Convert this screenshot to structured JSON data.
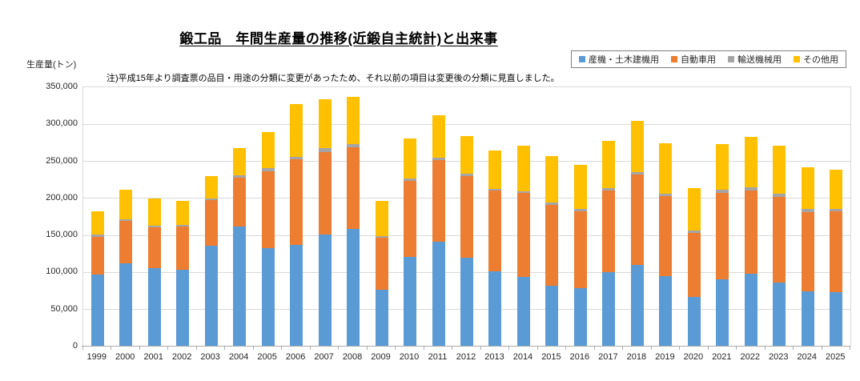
{
  "title": "鍛工品　年間生産量の推移(近鍛自主統計)と出来事",
  "note": "注)平成15年より調査票の品目・用途の分類に変更があったため、それ以前の項目は変更後の分類に見直しました。",
  "y_axis_title": "生産量(トン)",
  "colors": {
    "series_blue": "#5B9BD5",
    "series_orange": "#ED7D31",
    "series_gray": "#A5A5A5",
    "series_yellow": "#FFC000",
    "gridline": "#D9D9D9",
    "axis_line": "#ABABAB",
    "text": "#262626"
  },
  "chart_data": {
    "type": "bar",
    "stacked": true,
    "title": "鍛工品　年間生産量の推移(近鍛自主統計)と出来事",
    "xlabel": "",
    "ylabel": "生産量(トン)",
    "ylim": [
      0,
      350000
    ],
    "ytick_values": [
      0,
      50000,
      100000,
      150000,
      200000,
      250000,
      300000,
      350000
    ],
    "ytick_labels": [
      "0",
      "50,000",
      "100,000",
      "150,000",
      "200,000",
      "250,000",
      "300,000",
      "350,000"
    ],
    "grid": true,
    "legend_position": "top-right",
    "categories": [
      "1999",
      "2000",
      "2001",
      "2002",
      "2003",
      "2004",
      "2005",
      "2006",
      "2007",
      "2008",
      "2009",
      "2010",
      "2011",
      "2012",
      "2013",
      "2014",
      "2015",
      "2016",
      "2017",
      "2018",
      "2019",
      "2020",
      "2021",
      "2022",
      "2023",
      "2024",
      "2025"
    ],
    "series": [
      {
        "name": "産機・土木建機用",
        "color": "#5B9BD5",
        "values": [
          97000,
          112000,
          106000,
          104000,
          136000,
          162000,
          133000,
          137000,
          151000,
          159000,
          77000,
          121000,
          142000,
          120000,
          102000,
          94000,
          82000,
          79000,
          100000,
          110000,
          95000,
          67000,
          91000,
          98000,
          86000,
          74000,
          73000
        ]
      },
      {
        "name": "自動車用",
        "color": "#ED7D31",
        "values": [
          51000,
          58000,
          55000,
          58000,
          62000,
          66000,
          104000,
          116000,
          112000,
          110000,
          70000,
          103000,
          110000,
          110000,
          109000,
          113000,
          109000,
          104000,
          111000,
          122000,
          108000,
          86000,
          116000,
          113000,
          116000,
          108000,
          110000
        ]
      },
      {
        "name": "輸送機械用",
        "color": "#A5A5A5",
        "values": [
          3000,
          2000,
          2000,
          2000,
          2000,
          3000,
          4000,
          3000,
          5000,
          4000,
          2000,
          3000,
          3000,
          3000,
          2000,
          3000,
          3000,
          3000,
          3000,
          4000,
          3000,
          4000,
          5000,
          4000,
          4000,
          4000,
          3000
        ]
      },
      {
        "name": "その他用",
        "color": "#FFC000",
        "values": [
          32000,
          40000,
          37000,
          33000,
          30000,
          37000,
          49000,
          71000,
          66000,
          64000,
          48000,
          54000,
          57000,
          51000,
          52000,
          61000,
          63000,
          59000,
          64000,
          69000,
          68000,
          57000,
          61000,
          68000,
          65000,
          56000,
          53000
        ]
      }
    ]
  }
}
